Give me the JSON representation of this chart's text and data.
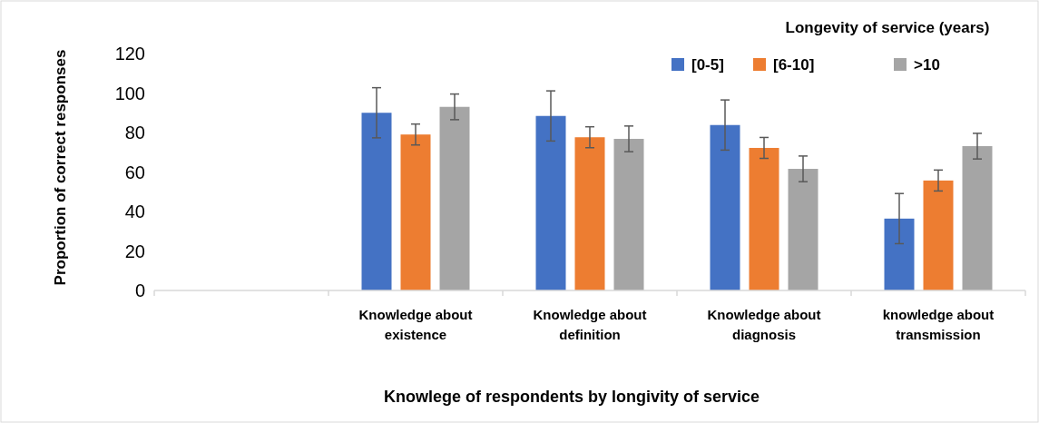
{
  "chart_data": {
    "type": "bar",
    "xlabel": "Knowlege of respondents by longivity of service",
    "ylabel": "Proportion of correct responses",
    "legend_title": "Longevity of service (years)",
    "categories": [
      null,
      "Knowledge about existence",
      "Knowledge about definition",
      "Knowledge about diagnosis",
      "knowledge about transmission"
    ],
    "series": [
      {
        "name": "[0-5]",
        "color": "#4472c4",
        "values": [
          null,
          90,
          88.4,
          83.8,
          36.4
        ],
        "errors": [
          null,
          12.7,
          12.7,
          12.7,
          12.7
        ]
      },
      {
        "name": "[6-10]",
        "color": "#ed7d31",
        "values": [
          null,
          79,
          77.6,
          72.2,
          55.7
        ],
        "errors": [
          null,
          5.3,
          5.3,
          5.3,
          5.3
        ]
      },
      {
        "name": ">10",
        "color": "#a5a5a5",
        "values": [
          null,
          93,
          76.8,
          61.6,
          73.1
        ],
        "errors": [
          null,
          6.5,
          6.5,
          6.5,
          6.5
        ]
      }
    ],
    "ylim": [
      0,
      120
    ],
    "yticks": [
      0,
      20,
      40,
      60,
      80,
      100,
      120
    ],
    "grid": false,
    "legend": "top right"
  }
}
